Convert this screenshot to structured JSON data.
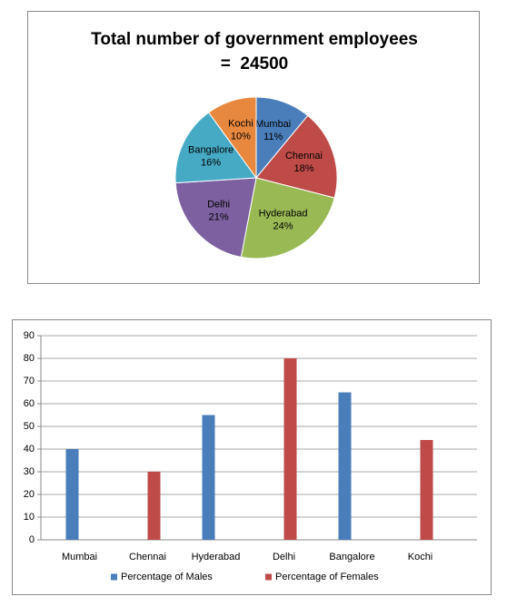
{
  "chart_data": [
    {
      "type": "pie",
      "title": "Total number of government employees  =  24500",
      "categories": [
        "Mumbai",
        "Chennai",
        "Hyderabad",
        "Delhi",
        "Bangalore",
        "Kochi"
      ],
      "values": [
        11,
        18,
        24,
        21,
        16,
        10
      ],
      "value_labels": [
        "11%",
        "18%",
        "24%",
        "21%",
        "16%",
        "10%"
      ],
      "colors": [
        "#4a7ebb",
        "#be4b48",
        "#98b954",
        "#7d60a0",
        "#46aac5",
        "#e8883e"
      ]
    },
    {
      "type": "bar",
      "categories": [
        "Mumbai",
        "Chennai",
        "Hyderabad",
        "Delhi",
        "Bangalore",
        "Kochi"
      ],
      "series": [
        {
          "name": "Percentage of Males",
          "color": "#4a7ebb",
          "values": [
            40,
            null,
            55,
            null,
            65,
            null
          ]
        },
        {
          "name": "Percentage of Females",
          "color": "#be4b48",
          "values": [
            null,
            30,
            null,
            80,
            null,
            44
          ]
        }
      ],
      "ylim": [
        0,
        90
      ],
      "yticks": [
        0,
        10,
        20,
        30,
        40,
        50,
        60,
        70,
        80,
        90
      ],
      "grid": true,
      "legend": "bottom"
    }
  ]
}
